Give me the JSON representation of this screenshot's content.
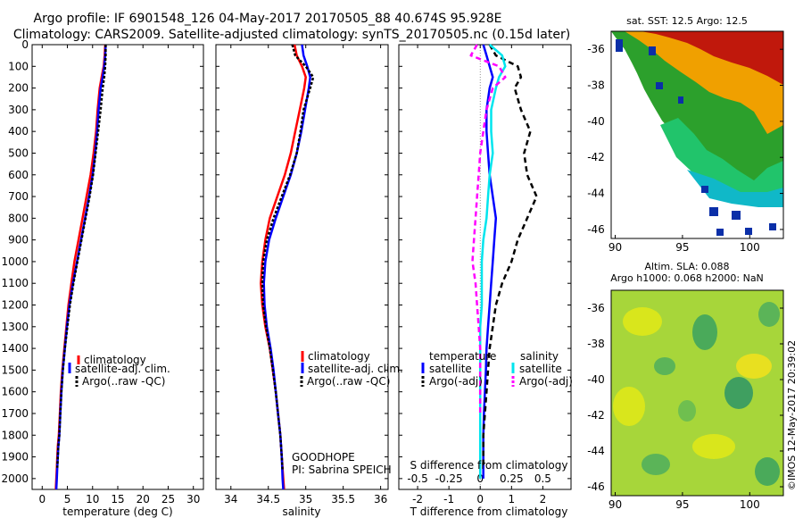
{
  "header": {
    "line1": "Argo profile: IF 6901548_126 04-May-2017 20170505_88 40.674S 95.928E",
    "line2": "Climatology: CARS2009. Satellite-adjusted climatology: synTS_20170505.nc (0.15d later)"
  },
  "colors": {
    "climatology": "#ff0000",
    "satellite": "#0000ff",
    "argo": "#000000",
    "sat_diff": "#00e5ee",
    "argo_diff": "#ff00ff"
  },
  "footer": {
    "program": "GOODHOPE",
    "pi": "PI: Sabrina SPEICH",
    "stamp": "©IMOS 12-May-2017 20:39:02"
  },
  "legend_profile": {
    "climatology": "climatology",
    "satellite": "satellite-adj. clim.",
    "argo": "Argo(..raw -QC)"
  },
  "legend_diff": {
    "temp_head": "temperature",
    "sal_head": "salinity",
    "satellite": "satellite",
    "argo": "Argo(-adj)"
  },
  "maps": {
    "sst_title": "sat. SST: 12.5  Argo: 12.5",
    "sla_title1": "Altim. SLA: 0.088",
    "sla_title2": "Argo h1000: 0.068  h2000: NaN",
    "lat_ticks": [
      "-36",
      "-38",
      "-40",
      "-42",
      "-44",
      "-46"
    ],
    "lon_ticks": [
      "90",
      "95",
      "100"
    ]
  },
  "chart_data": [
    {
      "type": "line",
      "title": "",
      "xlabel": "temperature (deg C)",
      "ylabel": "",
      "xlim": [
        -2,
        32
      ],
      "ylim": [
        2050,
        0
      ],
      "y_ticks": [
        "0",
        "100",
        "200",
        "300",
        "400",
        "500",
        "600",
        "700",
        "800",
        "900",
        "1000",
        "1100",
        "1200",
        "1300",
        "1400",
        "1500",
        "1600",
        "1700",
        "1800",
        "1900",
        "2000"
      ],
      "x_ticks": [
        {
          "v": 0,
          "l": "0"
        },
        {
          "v": 5,
          "l": "5"
        },
        {
          "v": 10,
          "l": "10"
        },
        {
          "v": 15,
          "l": "15"
        },
        {
          "v": 20,
          "l": "20"
        },
        {
          "v": 25,
          "l": "25"
        },
        {
          "v": 30,
          "l": "30"
        }
      ],
      "series": [
        {
          "name": "climatology",
          "color": "#ff0000",
          "dash": "none",
          "width": 2.5,
          "x": [
            12.5,
            12.4,
            12.2,
            11.8,
            11.4,
            11.0,
            10.7,
            10.2,
            9.6,
            8.8,
            8.0,
            7.2,
            6.4,
            5.8,
            5.2,
            4.8,
            4.4,
            4.0,
            3.7,
            3.5,
            3.3,
            3.1,
            3.0,
            2.9,
            2.8,
            2.7
          ],
          "y": [
            0,
            50,
            100,
            150,
            200,
            300,
            400,
            500,
            600,
            700,
            800,
            900,
            1000,
            1100,
            1200,
            1300,
            1400,
            1500,
            1600,
            1700,
            1800,
            1850,
            1900,
            1950,
            2000,
            2050
          ]
        },
        {
          "name": "satellite-adj. clim.",
          "color": "#0000ff",
          "dash": "none",
          "width": 2.5,
          "x": [
            12.6,
            12.5,
            12.3,
            12.0,
            11.6,
            11.2,
            10.9,
            10.5,
            10.0,
            9.3,
            8.5,
            7.7,
            6.9,
            6.1,
            5.4,
            4.9,
            4.5,
            4.1,
            3.8,
            3.6,
            3.4,
            3.2,
            3.1,
            3.0,
            2.9,
            2.8
          ],
          "y": [
            0,
            50,
            100,
            150,
            200,
            300,
            400,
            500,
            600,
            700,
            800,
            900,
            1000,
            1100,
            1200,
            1300,
            1400,
            1500,
            1600,
            1700,
            1800,
            1850,
            1900,
            1950,
            2000,
            2050
          ]
        },
        {
          "name": "Argo(..raw -QC)",
          "color": "#000000",
          "dash": "3,2",
          "width": 2.5,
          "x": [
            12.6,
            12.6,
            12.5,
            12.3,
            12.0,
            11.6,
            11.1,
            10.6,
            10.1,
            9.4,
            8.6,
            7.8,
            7.0,
            6.2,
            5.5,
            5.0,
            4.5,
            4.1,
            3.8,
            3.6,
            3.4,
            3.2,
            3.1,
            3.0
          ],
          "y": [
            0,
            50,
            100,
            150,
            200,
            300,
            400,
            500,
            600,
            700,
            800,
            900,
            1000,
            1100,
            1200,
            1300,
            1400,
            1500,
            1600,
            1700,
            1800,
            1850,
            1900,
            1950
          ]
        }
      ]
    },
    {
      "type": "line",
      "title": "",
      "xlabel": "salinity",
      "ylabel": "",
      "xlim": [
        33.8,
        36.1
      ],
      "ylim": [
        2050,
        0
      ],
      "x_ticks": [
        {
          "v": 34,
          "l": "34"
        },
        {
          "v": 34.5,
          "l": "34.5"
        },
        {
          "v": 35,
          "l": "35"
        },
        {
          "v": 35.5,
          "l": "35.5"
        },
        {
          "v": 36,
          "l": "36"
        }
      ],
      "series": [
        {
          "name": "climatology",
          "color": "#ff0000",
          "dash": "none",
          "width": 2.5,
          "x": [
            34.85,
            34.88,
            34.95,
            35.0,
            34.98,
            34.92,
            34.86,
            34.8,
            34.72,
            34.62,
            34.52,
            34.46,
            34.42,
            34.4,
            34.42,
            34.46,
            34.52,
            34.56,
            34.6,
            34.63,
            34.66,
            34.68,
            34.7,
            34.71
          ],
          "y": [
            0,
            50,
            100,
            150,
            200,
            300,
            400,
            500,
            600,
            700,
            800,
            900,
            1000,
            1100,
            1200,
            1300,
            1400,
            1500,
            1600,
            1700,
            1800,
            1900,
            2000,
            2050
          ]
        },
        {
          "name": "satellite-adj. clim.",
          "color": "#0000ff",
          "dash": "none",
          "width": 2.5,
          "x": [
            34.95,
            34.97,
            35.02,
            35.06,
            35.04,
            34.99,
            34.94,
            34.88,
            34.8,
            34.7,
            34.6,
            34.51,
            34.46,
            34.44,
            34.45,
            34.48,
            34.53,
            34.57,
            34.6,
            34.63,
            34.66,
            34.68,
            34.69,
            34.7
          ],
          "y": [
            0,
            50,
            100,
            150,
            200,
            300,
            400,
            500,
            600,
            700,
            800,
            900,
            1000,
            1100,
            1200,
            1300,
            1400,
            1500,
            1600,
            1700,
            1800,
            1900,
            2000,
            2050
          ]
        },
        {
          "name": "Argo(..raw -QC)",
          "color": "#000000",
          "dash": "3,2",
          "width": 2.5,
          "x": [
            34.82,
            34.86,
            35.0,
            35.1,
            35.06,
            34.97,
            34.93,
            34.88,
            34.79,
            34.68,
            34.57,
            34.48,
            34.43,
            34.42,
            34.43,
            34.47,
            34.52,
            34.56,
            34.6,
            34.63,
            34.66,
            34.68,
            34.69
          ],
          "y": [
            0,
            50,
            100,
            150,
            200,
            300,
            400,
            500,
            600,
            700,
            800,
            900,
            1000,
            1100,
            1200,
            1300,
            1400,
            1500,
            1600,
            1700,
            1800,
            1900,
            1960
          ]
        }
      ]
    },
    {
      "type": "line",
      "title": "",
      "xlabel": "T difference from climatology",
      "x2label": "S difference from climatology",
      "ylabel": "",
      "xlim": [
        -2.6,
        2.9
      ],
      "ylim": [
        2050,
        0
      ],
      "x_ticks": [
        {
          "v": -2,
          "l": "-2"
        },
        {
          "v": -1,
          "l": "-1"
        },
        {
          "v": 0,
          "l": "0"
        },
        {
          "v": 1,
          "l": "1"
        },
        {
          "v": 2,
          "l": "2"
        }
      ],
      "x2_ticks": [
        {
          "v": -2,
          "l": "-0.5"
        },
        {
          "v": -1,
          "l": "-0.25"
        },
        {
          "v": 0,
          "l": "0"
        },
        {
          "v": 1,
          "l": "0.25"
        },
        {
          "v": 2,
          "l": "0.5"
        }
      ],
      "series": [
        {
          "name": "temperature satellite",
          "color": "#0000ff",
          "dash": "none",
          "width": 2.5,
          "x": [
            0.1,
            0.2,
            0.3,
            0.4,
            0.3,
            0.2,
            0.2,
            0.25,
            0.3,
            0.4,
            0.5,
            0.45,
            0.4,
            0.35,
            0.3,
            0.25,
            0.2,
            0.18,
            0.15,
            0.12,
            0.1,
            0.1,
            0.1
          ],
          "y": [
            0,
            50,
            100,
            150,
            200,
            300,
            400,
            500,
            600,
            700,
            800,
            900,
            1000,
            1100,
            1200,
            1300,
            1400,
            1500,
            1600,
            1700,
            1800,
            1900,
            2000
          ]
        },
        {
          "name": "temperature Argo(-adj)",
          "color": "#000000",
          "dash": "6,4",
          "width": 2.5,
          "x": [
            0.3,
            0.5,
            1.2,
            1.3,
            1.1,
            1.3,
            1.6,
            1.4,
            1.5,
            1.8,
            1.5,
            1.2,
            1.0,
            0.7,
            0.5,
            0.4,
            0.3,
            0.25,
            0.2,
            0.15,
            0.1,
            0.1
          ],
          "y": [
            0,
            50,
            100,
            150,
            200,
            300,
            400,
            500,
            600,
            700,
            800,
            900,
            1000,
            1100,
            1200,
            1300,
            1400,
            1500,
            1600,
            1700,
            1800,
            1950
          ]
        },
        {
          "name": "salinity satellite",
          "color": "#00e5ee",
          "dash": "none",
          "width": 2.5,
          "x": [
            0.3,
            0.7,
            0.8,
            0.6,
            0.5,
            0.35,
            0.35,
            0.4,
            0.3,
            0.25,
            0.2,
            0.1,
            0.05,
            0.05,
            0.05,
            0.0,
            0.0,
            0.0,
            0.0,
            0.0,
            0.0,
            0.0,
            0.0
          ],
          "y": [
            0,
            50,
            100,
            150,
            200,
            300,
            400,
            500,
            600,
            700,
            800,
            900,
            1000,
            1100,
            1200,
            1300,
            1400,
            1500,
            1600,
            1700,
            1800,
            1900,
            2000
          ]
        },
        {
          "name": "salinity Argo(-adj)",
          "color": "#ff00ff",
          "dash": "6,4",
          "width": 2.5,
          "x": [
            -0.1,
            -0.3,
            0.6,
            0.8,
            0.4,
            0.2,
            0.1,
            0.0,
            -0.05,
            -0.1,
            -0.15,
            -0.2,
            -0.25,
            -0.15,
            -0.1,
            -0.05,
            0.0,
            0.0,
            0.0,
            0.0
          ],
          "y": [
            0,
            50,
            100,
            150,
            200,
            300,
            400,
            500,
            600,
            700,
            800,
            900,
            1000,
            1100,
            1200,
            1300,
            1400,
            1500,
            1600,
            1700
          ]
        }
      ]
    }
  ]
}
